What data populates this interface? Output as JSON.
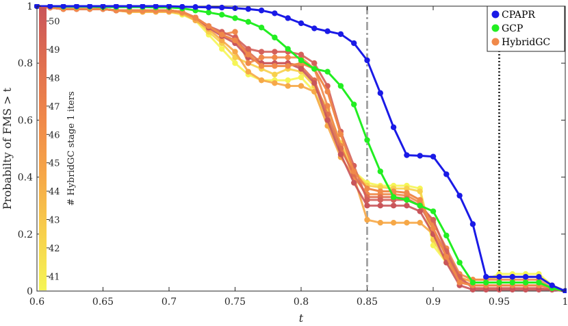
{
  "chart_data": {
    "type": "line",
    "xlabel": "t",
    "ylabel": "Probabilty of FMS > t",
    "xlim": [
      0.6,
      1.0
    ],
    "ylim": [
      0,
      1
    ],
    "x_ticks": [
      "0.6",
      "0.65",
      "0.7",
      "0.75",
      "0.8",
      "0.85",
      "0.9",
      "0.95",
      "1"
    ],
    "y_ticks": [
      "0",
      "0.2",
      "0.4",
      "0.6",
      "0.8",
      "1"
    ],
    "grid": false,
    "legend_position": "top-right",
    "vlines": [
      {
        "x": 0.85,
        "style": "dash-dot",
        "color": "#a6a6a6"
      },
      {
        "x": 0.95,
        "style": "dotted",
        "color": "#333333"
      }
    ],
    "colorbar": {
      "label": "# HybridGC stage 1 iters",
      "ticks": [
        "41",
        "42",
        "43",
        "44",
        "45",
        "46",
        "47",
        "48",
        "49",
        "50"
      ],
      "range": [
        40.5,
        50.5
      ],
      "colors": [
        "#f5f556",
        "#f7d04c",
        "#f6a848",
        "#f0894a",
        "#e06f50",
        "#c9555a"
      ]
    },
    "x": [
      0.6,
      0.61,
      0.62,
      0.63,
      0.64,
      0.65,
      0.66,
      0.67,
      0.68,
      0.69,
      0.7,
      0.71,
      0.72,
      0.73,
      0.74,
      0.75,
      0.76,
      0.77,
      0.78,
      0.79,
      0.8,
      0.81,
      0.82,
      0.83,
      0.84,
      0.85,
      0.86,
      0.87,
      0.88,
      0.89,
      0.9,
      0.91,
      0.92,
      0.93,
      0.94,
      0.95,
      0.96,
      0.97,
      0.98,
      0.99,
      1.0
    ],
    "series": [
      {
        "name": "CPAPR",
        "color": "#1a1ae6",
        "values": [
          1,
          1,
          1,
          1,
          1,
          1,
          1,
          1,
          1,
          1,
          1,
          0.998,
          0.997,
          0.996,
          0.995,
          0.993,
          0.99,
          0.985,
          0.975,
          0.958,
          0.94,
          0.922,
          0.912,
          0.902,
          0.87,
          0.81,
          0.695,
          0.575,
          0.477,
          0.475,
          0.472,
          0.41,
          0.335,
          0.235,
          0.05,
          0.05,
          0.05,
          0.05,
          0.05,
          0.02,
          0
        ]
      },
      {
        "name": "GCP",
        "color": "#22ee22",
        "values": [
          1,
          1,
          0.998,
          0.998,
          0.998,
          0.997,
          0.997,
          0.997,
          0.997,
          0.996,
          0.996,
          0.992,
          0.985,
          0.978,
          0.97,
          0.958,
          0.945,
          0.925,
          0.89,
          0.85,
          0.81,
          0.78,
          0.77,
          0.72,
          0.655,
          0.53,
          0.42,
          0.33,
          0.32,
          0.3,
          0.28,
          0.195,
          0.1,
          0.03,
          0.03,
          0.03,
          0.03,
          0.03,
          0.03,
          0.01,
          0
        ]
      },
      {
        "name": "HybridGC",
        "color": "#f0894a",
        "values": [
          1,
          0.995,
          0.99,
          0.99,
          0.99,
          0.99,
          0.985,
          0.985,
          0.985,
          0.985,
          0.985,
          0.98,
          0.96,
          0.93,
          0.9,
          0.88,
          0.83,
          0.79,
          0.79,
          0.79,
          0.8,
          0.78,
          0.7,
          0.55,
          0.42,
          0.36,
          0.35,
          0.35,
          0.345,
          0.32,
          0.22,
          0.12,
          0.03,
          0.02,
          0.02,
          0.02,
          0.02,
          0.02,
          0.02,
          0.01,
          0
        ]
      },
      {
        "color": "#f5f556",
        "values": [
          1,
          0.995,
          0.99,
          0.99,
          0.99,
          0.99,
          0.985,
          0.98,
          0.98,
          0.98,
          0.98,
          0.97,
          0.95,
          0.9,
          0.85,
          0.8,
          0.76,
          0.74,
          0.74,
          0.74,
          0.75,
          0.7,
          0.6,
          0.5,
          0.42,
          0.38,
          0.37,
          0.37,
          0.37,
          0.36,
          0.16,
          0.1,
          0.04,
          0.04,
          0.04,
          0.06,
          0.06,
          0.06,
          0.06,
          0.02,
          0
        ]
      },
      {
        "color": "#f7d04c",
        "values": [
          1,
          0.995,
          0.99,
          0.99,
          0.99,
          0.99,
          0.985,
          0.98,
          0.98,
          0.98,
          0.98,
          0.975,
          0.955,
          0.91,
          0.87,
          0.82,
          0.8,
          0.78,
          0.76,
          0.78,
          0.77,
          0.72,
          0.64,
          0.52,
          0.42,
          0.37,
          0.365,
          0.36,
          0.36,
          0.35,
          0.18,
          0.1,
          0.04,
          0.04,
          0.04,
          0.05,
          0.05,
          0.05,
          0.05,
          0.02,
          0
        ]
      },
      {
        "color": "#f6a848",
        "values": [
          1,
          0.995,
          0.99,
          0.99,
          0.99,
          0.99,
          0.985,
          0.98,
          0.98,
          0.98,
          0.98,
          0.975,
          0.95,
          0.92,
          0.88,
          0.84,
          0.77,
          0.74,
          0.73,
          0.72,
          0.72,
          0.7,
          0.58,
          0.47,
          0.4,
          0.25,
          0.24,
          0.24,
          0.24,
          0.24,
          0.2,
          0.13,
          0.05,
          0.03,
          0.03,
          0.03,
          0.03,
          0.03,
          0.03,
          0.01,
          0
        ]
      },
      {
        "color": "#f0894a",
        "values": [
          1,
          0.995,
          0.99,
          0.99,
          0.99,
          0.99,
          0.985,
          0.985,
          0.985,
          0.985,
          0.985,
          0.98,
          0.96,
          0.93,
          0.9,
          0.91,
          0.8,
          0.82,
          0.82,
          0.82,
          0.82,
          0.78,
          0.65,
          0.51,
          0.4,
          0.34,
          0.34,
          0.34,
          0.335,
          0.31,
          0.24,
          0.15,
          0.06,
          0.04,
          0.04,
          0.04,
          0.04,
          0.04,
          0.04,
          0.01,
          0
        ]
      },
      {
        "color": "#e06f50",
        "values": [
          1,
          0.995,
          0.99,
          0.99,
          0.99,
          0.99,
          0.985,
          0.985,
          0.985,
          0.985,
          0.985,
          0.98,
          0.96,
          0.93,
          0.9,
          0.88,
          0.84,
          0.8,
          0.8,
          0.8,
          0.79,
          0.74,
          0.62,
          0.5,
          0.41,
          0.33,
          0.33,
          0.33,
          0.325,
          0.3,
          0.22,
          0.13,
          0.04,
          0.02,
          0.02,
          0.02,
          0.02,
          0.02,
          0.02,
          0.01,
          0
        ]
      },
      {
        "color": "#d4605a",
        "values": [
          1,
          0.995,
          0.99,
          0.99,
          0.99,
          0.99,
          0.985,
          0.985,
          0.985,
          0.985,
          0.985,
          0.98,
          0.96,
          0.93,
          0.91,
          0.89,
          0.85,
          0.84,
          0.84,
          0.84,
          0.83,
          0.8,
          0.72,
          0.56,
          0.44,
          0.32,
          0.32,
          0.32,
          0.32,
          0.3,
          0.25,
          0.14,
          0.05,
          0.01,
          0.01,
          0.01,
          0.01,
          0.01,
          0.01,
          0.005,
          0
        ]
      },
      {
        "color": "#c9555a",
        "values": [
          1,
          0.995,
          0.99,
          0.99,
          0.99,
          0.99,
          0.985,
          0.985,
          0.985,
          0.985,
          0.985,
          0.98,
          0.96,
          0.925,
          0.895,
          0.87,
          0.82,
          0.8,
          0.8,
          0.8,
          0.78,
          0.73,
          0.6,
          0.48,
          0.38,
          0.3,
          0.3,
          0.3,
          0.3,
          0.28,
          0.2,
          0.1,
          0.02,
          0.005,
          0.005,
          0.005,
          0.005,
          0.005,
          0.005,
          0.005,
          0
        ]
      }
    ]
  }
}
